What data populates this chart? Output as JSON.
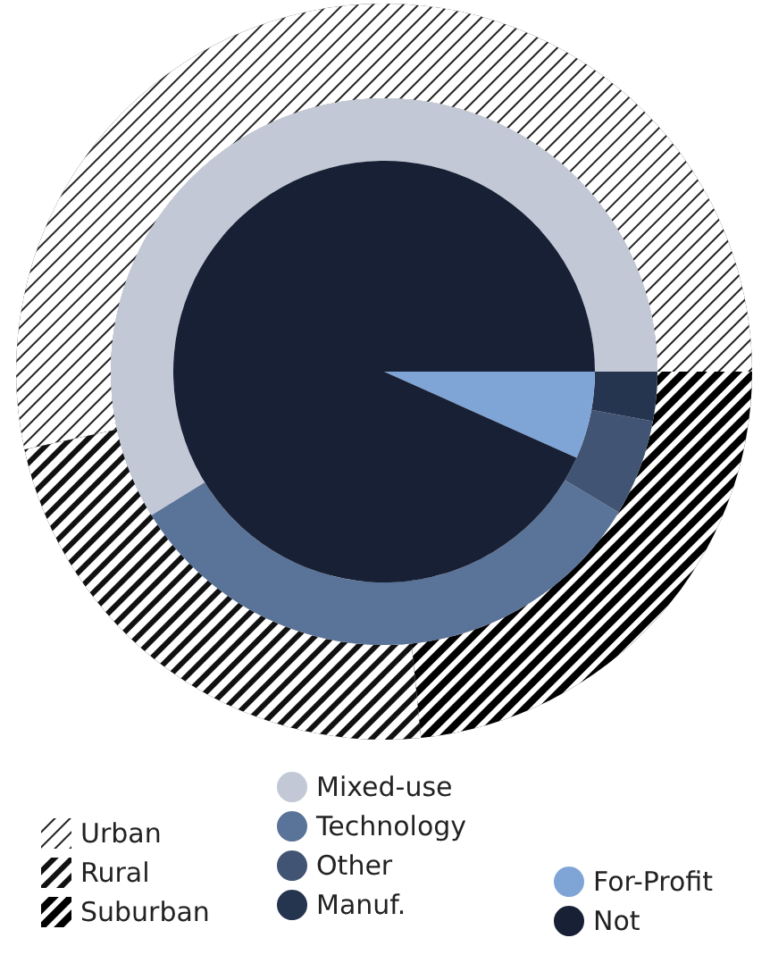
{
  "chart_data": [
    {
      "type": "donut",
      "legend": "bottom left",
      "categories": [
        "Urban",
        "Rural",
        "Suburban"
      ],
      "values": [
        53.4,
        23.2,
        23.4
      ],
      "colors": [
        "#222222",
        "#111111",
        "#000000"
      ]
    },
    {
      "type": "donut",
      "legend": "bottom",
      "categories": [
        "Mixed-use",
        "Technology",
        "Other",
        "Manuf."
      ],
      "values": [
        58.8,
        32.6,
        5.7,
        2.9
      ],
      "colors": [
        "#c2c8d6",
        "#5a7398",
        "#415473",
        "#25344f"
      ]
    },
    {
      "type": "pie",
      "legend": "bottom right",
      "categories": [
        "For-Profit",
        "Not"
      ],
      "values": [
        6.7,
        93.3
      ],
      "colors": [
        "#7fa5d6",
        "#172035"
      ]
    }
  ]
}
